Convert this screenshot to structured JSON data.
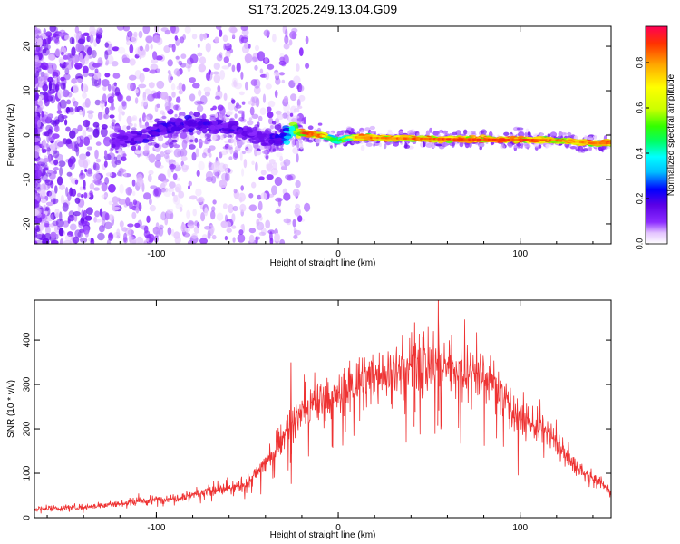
{
  "title": "S173.2025.249.13.04.G09",
  "chart_data": [
    {
      "type": "heatmap",
      "name": "spectrogram",
      "xlabel": "Height of straight line (km)",
      "ylabel": "Frequency (Hz)",
      "xlim": [
        -167,
        150
      ],
      "ylim": [
        -24.5,
        24.5
      ],
      "xticks": [
        -100,
        0,
        100
      ],
      "yticks": [
        -20,
        -10,
        0,
        10,
        20
      ],
      "colorbar": {
        "label": "Normalized spectral amplitude",
        "range": [
          0.0,
          0.96
        ],
        "ticks": [
          0.0,
          0.2,
          0.4,
          0.6,
          0.8
        ],
        "tick_labels": [
          "0.0",
          "0.2",
          "0.4",
          "0.6",
          "0.8"
        ],
        "colors": [
          "#ffffff",
          "#e4c4ff",
          "#8c2cff",
          "#5a00e6",
          "#0000ff",
          "#00bfff",
          "#00ffff",
          "#00ff66",
          "#33ff00",
          "#ccff00",
          "#ffff00",
          "#ffaa00",
          "#ff3300",
          "#ff0055"
        ]
      },
      "ridge": {
        "description": "signal ridge frequency (Hz) vs height (km)",
        "x": [
          -122,
          -110,
          -100,
          -90,
          -80,
          -70,
          -60,
          -50,
          -40,
          -30,
          -25,
          -20,
          -15,
          -10,
          -5,
          0,
          5,
          10,
          20,
          40,
          60,
          80,
          100,
          120,
          130,
          140,
          150
        ],
        "y": [
          -1.0,
          -0.5,
          1.0,
          2.0,
          2.5,
          2.0,
          1.8,
          0.5,
          -1.0,
          -0.5,
          1.5,
          0.5,
          0.2,
          0.0,
          -0.5,
          -1.3,
          -0.5,
          -0.5,
          -0.6,
          -0.8,
          -0.9,
          -1.0,
          -1.0,
          -1.2,
          -1.5,
          -1.8,
          -1.8
        ],
        "peak_amplitude": [
          0.15,
          0.2,
          0.22,
          0.2,
          0.22,
          0.2,
          0.2,
          0.18,
          0.15,
          0.3,
          0.55,
          0.95,
          0.95,
          0.9,
          0.6,
          0.5,
          0.7,
          0.85,
          0.9,
          0.92,
          0.94,
          0.96,
          0.95,
          0.9,
          0.85,
          0.9,
          0.92
        ]
      }
    },
    {
      "type": "line",
      "name": "snr",
      "xlabel": "Height of straight line (km)",
      "ylabel": "SNR (10 * v/v)",
      "xlim": [
        -167,
        150
      ],
      "ylim": [
        0,
        490
      ],
      "xticks": [
        -100,
        0,
        100
      ],
      "yticks": [
        0,
        100,
        200,
        300,
        400
      ],
      "color": "#ee3333",
      "series": [
        {
          "name": "SNR envelope",
          "x": [
            -167,
            -150,
            -130,
            -110,
            -90,
            -70,
            -60,
            -50,
            -40,
            -35,
            -30,
            -25,
            -20,
            -15,
            -10,
            0,
            10,
            20,
            30,
            40,
            50,
            60,
            70,
            80,
            90,
            100,
            110,
            120,
            130,
            140,
            150
          ],
          "y": [
            20,
            22,
            28,
            35,
            45,
            60,
            65,
            75,
            125,
            150,
            185,
            210,
            240,
            250,
            260,
            275,
            300,
            320,
            330,
            340,
            345,
            345,
            335,
            320,
            280,
            225,
            205,
            170,
            115,
            85,
            65
          ]
        }
      ],
      "peaks": {
        "x": [
          -26,
          55,
          42
        ],
        "y": [
          350,
          495,
          440
        ]
      }
    }
  ]
}
